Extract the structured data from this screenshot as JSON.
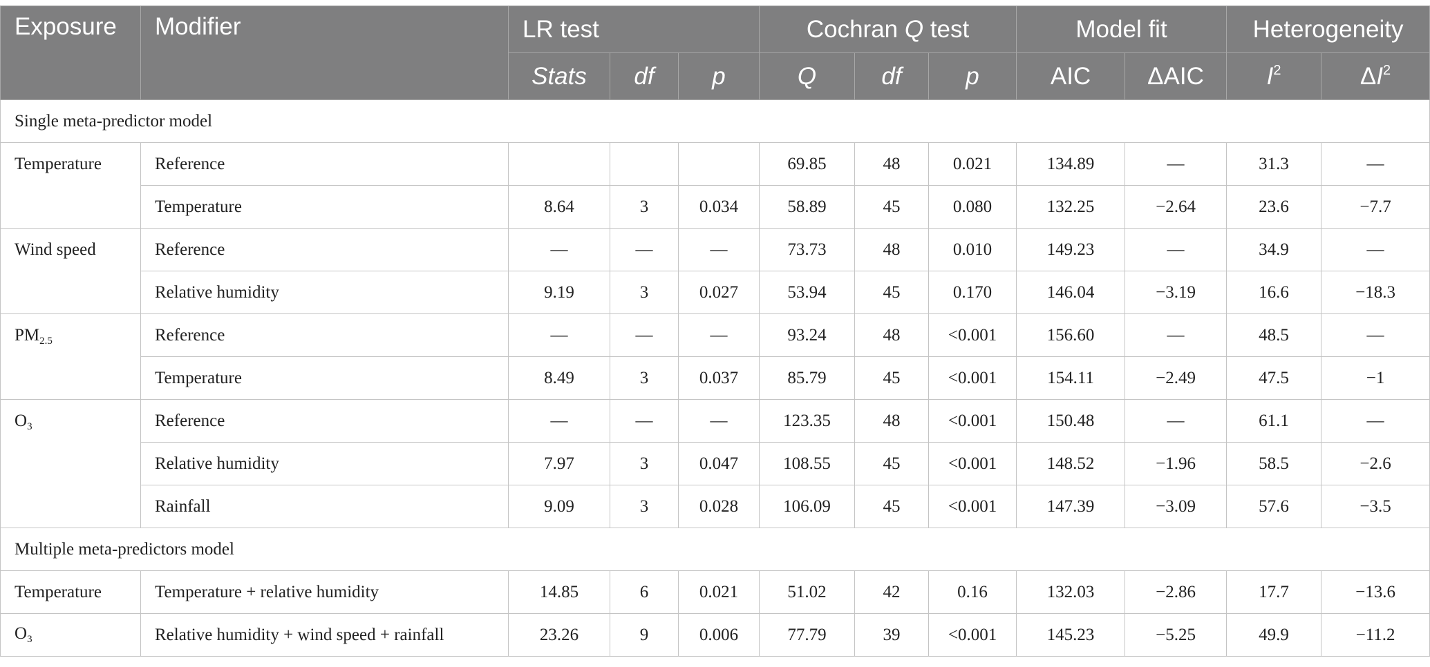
{
  "header": {
    "exposure": "Exposure",
    "modifier": "Modifier",
    "lr_test": "LR test",
    "cochran_pre": "Cochran ",
    "cochran_q": "Q",
    "cochran_post": " test",
    "model_fit": "Model fit",
    "heterogeneity": "Heterogeneity",
    "sub": {
      "stats": "Stats",
      "df1": "df",
      "p1": "p",
      "q": "Q",
      "df2": "df",
      "p2": "p",
      "aic": "AIC",
      "daic": "ΔAIC",
      "i2_i": "I",
      "i2_sup": "2",
      "di2_delta": "Δ",
      "di2_i": "I",
      "di2_sup": "2"
    }
  },
  "sections": {
    "single": "Single meta-predictor model",
    "multiple": "Multiple meta-predictors model"
  },
  "exposures": {
    "temperature": "Temperature",
    "wind": "Wind speed",
    "pm_base": "PM",
    "pm_sub": "2.5",
    "o3_base": "O",
    "o3_sub": "3",
    "temperature_multi": "Temperature",
    "o3_multi_base": "O",
    "o3_multi_sub": "3"
  },
  "rows": [
    {
      "modifier": "Reference",
      "stats": "",
      "df1": "",
      "p1": "",
      "q": "69.85",
      "df2": "48",
      "p2": "0.021",
      "aic": "134.89",
      "daic": "—",
      "i2": "31.3",
      "di2": "—"
    },
    {
      "modifier": "Temperature",
      "stats": "8.64",
      "df1": "3",
      "p1": "0.034",
      "q": "58.89",
      "df2": "45",
      "p2": "0.080",
      "aic": "132.25",
      "daic": "−2.64",
      "i2": "23.6",
      "di2": "−7.7"
    },
    {
      "modifier": "Reference",
      "stats": "—",
      "df1": "—",
      "p1": "—",
      "q": "73.73",
      "df2": "48",
      "p2": "0.010",
      "aic": "149.23",
      "daic": "—",
      "i2": "34.9",
      "di2": "—"
    },
    {
      "modifier": "Relative humidity",
      "stats": "9.19",
      "df1": "3",
      "p1": "0.027",
      "q": "53.94",
      "df2": "45",
      "p2": "0.170",
      "aic": "146.04",
      "daic": "−3.19",
      "i2": "16.6",
      "di2": "−18.3"
    },
    {
      "modifier": "Reference",
      "stats": "—",
      "df1": "—",
      "p1": "—",
      "q": "93.24",
      "df2": "48",
      "p2": "<0.001",
      "aic": "156.60",
      "daic": "—",
      "i2": "48.5",
      "di2": "—"
    },
    {
      "modifier": "Temperature",
      "stats": "8.49",
      "df1": "3",
      "p1": "0.037",
      "q": "85.79",
      "df2": "45",
      "p2": "<0.001",
      "aic": "154.11",
      "daic": "−2.49",
      "i2": "47.5",
      "di2": "−1"
    },
    {
      "modifier": "Reference",
      "stats": "—",
      "df1": "—",
      "p1": "—",
      "q": "123.35",
      "df2": "48",
      "p2": "<0.001",
      "aic": "150.48",
      "daic": "—",
      "i2": "61.1",
      "di2": "—"
    },
    {
      "modifier": "Relative humidity",
      "stats": "7.97",
      "df1": "3",
      "p1": "0.047",
      "q": "108.55",
      "df2": "45",
      "p2": "<0.001",
      "aic": "148.52",
      "daic": "−1.96",
      "i2": "58.5",
      "di2": "−2.6"
    },
    {
      "modifier": "Rainfall",
      "stats": "9.09",
      "df1": "3",
      "p1": "0.028",
      "q": "106.09",
      "df2": "45",
      "p2": "<0.001",
      "aic": "147.39",
      "daic": "−3.09",
      "i2": "57.6",
      "di2": "−3.5"
    },
    {
      "modifier": "Temperature + relative humidity",
      "stats": "14.85",
      "df1": "6",
      "p1": "0.021",
      "q": "51.02",
      "df2": "42",
      "p2": "0.16",
      "aic": "132.03",
      "daic": "−2.86",
      "i2": "17.7",
      "di2": "−13.6"
    },
    {
      "modifier": "Relative humidity + wind speed + rainfall",
      "stats": "23.26",
      "df1": "9",
      "p1": "0.006",
      "q": "77.79",
      "df2": "39",
      "p2": "<0.001",
      "aic": "145.23",
      "daic": "−5.25",
      "i2": "49.9",
      "di2": "−11.2"
    }
  ]
}
